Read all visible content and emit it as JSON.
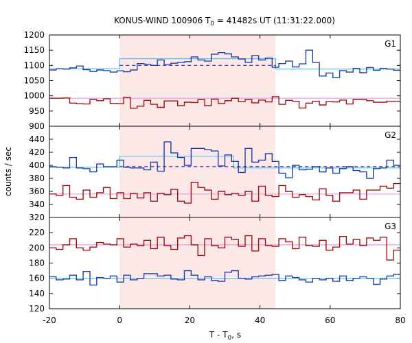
{
  "chart_data": {
    "type": "line",
    "title_main": "KONUS-WIND 100906 T",
    "title_sub": "0",
    "title_rest": " = 41482s UT (11:31:22.000)",
    "xlabel_main": "T - T",
    "xlabel_sub": "0",
    "xlabel_rest": ", s",
    "ylabel": "counts / sec",
    "xlim": [
      -20,
      80
    ],
    "xticks": [
      "-20",
      "0",
      "20",
      "40",
      "60",
      "80"
    ],
    "highlight_interval": [
      0,
      44.5
    ],
    "colors": {
      "blue": "#1f3fa8",
      "red": "#a01010",
      "cyan": "#56bfe6",
      "pink": "#e49be0",
      "dashed": "#2a2aa6",
      "highlight": "#fde8e8"
    },
    "panels": [
      {
        "name": "G1",
        "ylim": [
          900,
          1200
        ],
        "yticks": [
          "900",
          "950",
          "1000",
          "1050",
          "1100",
          "1150",
          "1200"
        ],
        "blue": [
          1085,
          1089,
          1088,
          1092,
          1098,
          1086,
          1080,
          1085,
          1083,
          1078,
          1082,
          1079,
          1085,
          1106,
          1104,
          1100,
          1118,
          1102,
          1107,
          1110,
          1112,
          1128,
          1118,
          1114,
          1137,
          1142,
          1138,
          1128,
          1121,
          1110,
          1132,
          1118,
          1124,
          1094,
          1106,
          1114,
          1095,
          1105,
          1150,
          1110,
          1065,
          1075,
          1060,
          1083,
          1078,
          1090,
          1076,
          1093,
          1084,
          1090,
          1088,
          1084
        ],
        "red": [
          992,
          992,
          993,
          976,
          974,
          973,
          988,
          984,
          990,
          975,
          974,
          995,
          959,
          966,
          985,
          972,
          962,
          983,
          983,
          968,
          979,
          978,
          988,
          968,
          989,
          975,
          984,
          992,
          981,
          988,
          977,
          986,
          980,
          997,
          972,
          985,
          982,
          960,
          976,
          982,
          970,
          981,
          980,
          986,
          973,
          988,
          988,
          984,
          979,
          979,
          982,
          982
        ],
        "fit_cyan": [
          [
            -20,
            1089
          ],
          [
            0,
            1089
          ],
          [
            0,
            1122
          ],
          [
            44.5,
            1122
          ],
          [
            44.5,
            1088
          ],
          [
            80,
            1088
          ]
        ],
        "fit_pink": [
          [
            -20,
            992
          ],
          [
            80,
            992
          ]
        ],
        "dashed": [
          [
            0,
            1100
          ],
          [
            44.5,
            1100
          ]
        ]
      },
      {
        "name": "G2",
        "ylim": [
          320,
          460
        ],
        "yticks": [
          "320",
          "340",
          "360",
          "380",
          "400",
          "420",
          "440"
        ],
        "blue": [
          398,
          397,
          396,
          412,
          396,
          395,
          390,
          402,
          398,
          398,
          408,
          397,
          396,
          396,
          393,
          405,
          391,
          436,
          419,
          412,
          400,
          426,
          426,
          424,
          422,
          399,
          416,
          406,
          389,
          426,
          405,
          408,
          418,
          406,
          388,
          381,
          400,
          393,
          394,
          398,
          390,
          396,
          388,
          395,
          398,
          392,
          390,
          380,
          395,
          396,
          408,
          400
        ],
        "red": [
          356,
          354,
          369,
          351,
          348,
          362,
          351,
          358,
          366,
          349,
          358,
          349,
          357,
          350,
          358,
          345,
          357,
          355,
          363,
          345,
          342,
          374,
          366,
          362,
          348,
          360,
          355,
          357,
          354,
          360,
          345,
          368,
          354,
          352,
          369,
          360,
          351,
          355,
          352,
          347,
          364,
          354,
          345,
          358,
          358,
          362,
          348,
          362,
          362,
          368,
          365,
          372
        ],
        "fit_cyan": [
          [
            -20,
            397
          ],
          [
            0,
            397
          ],
          [
            0,
            414
          ],
          [
            32.5,
            414
          ],
          [
            32.5,
            396
          ],
          [
            80,
            396
          ]
        ],
        "fit_pink": [
          [
            -20,
            356
          ],
          [
            80,
            356
          ]
        ],
        "dashed": [
          [
            0,
            398
          ],
          [
            80,
            398
          ]
        ]
      },
      {
        "name": "G3",
        "ylim": [
          120,
          240
        ],
        "yticks": [
          "120",
          "140",
          "160",
          "180",
          "200",
          "220"
        ],
        "blue": [
          162,
          158,
          159,
          164,
          158,
          169,
          151,
          161,
          160,
          163,
          155,
          164,
          158,
          160,
          166,
          166,
          163,
          164,
          159,
          158,
          170,
          164,
          158,
          162,
          157,
          156,
          168,
          170,
          160,
          159,
          162,
          163,
          164,
          165,
          157,
          163,
          161,
          158,
          155,
          160,
          158,
          160,
          156,
          163,
          157,
          160,
          162,
          160,
          152,
          159,
          163,
          165
        ],
        "red": [
          200,
          198,
          204,
          212,
          200,
          197,
          201,
          207,
          205,
          204,
          212,
          201,
          205,
          203,
          210,
          199,
          214,
          203,
          198,
          213,
          216,
          204,
          190,
          212,
          203,
          200,
          214,
          211,
          202,
          216,
          196,
          212,
          203,
          202,
          212,
          208,
          199,
          214,
          203,
          202,
          210,
          197,
          201,
          215,
          205,
          211,
          203,
          213,
          210,
          214,
          184,
          197
        ],
        "fit_cyan": [
          [
            -20,
            160
          ],
          [
            80,
            160
          ]
        ],
        "fit_pink": [
          [
            -20,
            204
          ],
          [
            80,
            204
          ]
        ],
        "dashed": []
      }
    ]
  }
}
